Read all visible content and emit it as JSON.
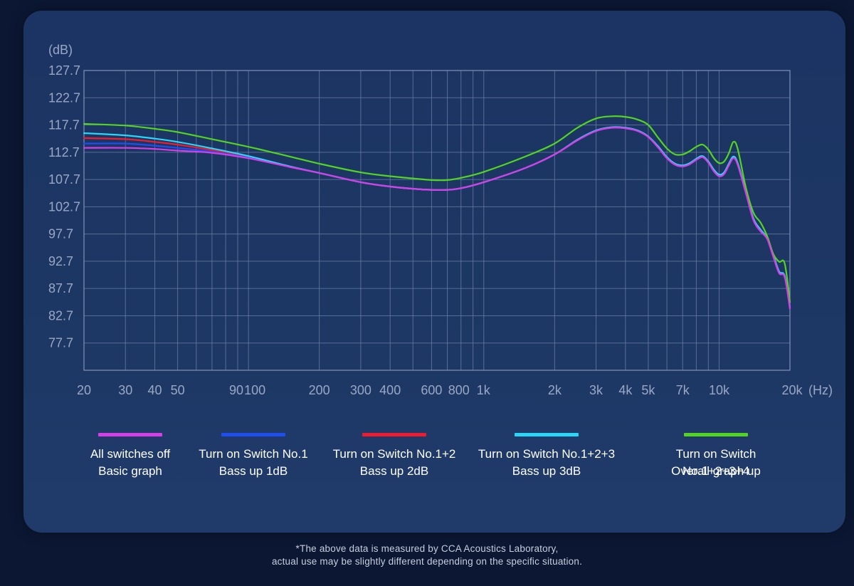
{
  "chart_data": {
    "type": "line",
    "ylabel": "(dB)",
    "xlabel": "(Hz)",
    "x_scale": "log",
    "xlim": [
      20,
      20000
    ],
    "ylim": [
      72.7,
      127.7
    ],
    "grid": true,
    "y_ticks": [
      127.7,
      122.7,
      117.7,
      112.7,
      107.7,
      102.7,
      97.7,
      92.7,
      87.7,
      82.7,
      77.7
    ],
    "x_ticks": [
      {
        "value": 20,
        "label": "20"
      },
      {
        "value": 30,
        "label": "30"
      },
      {
        "value": 40,
        "label": "40"
      },
      {
        "value": 50,
        "label": "50"
      },
      {
        "value": 90,
        "label": "90"
      },
      {
        "value": 100,
        "label": "100"
      },
      {
        "value": 200,
        "label": "200"
      },
      {
        "value": 300,
        "label": "300"
      },
      {
        "value": 400,
        "label": "400"
      },
      {
        "value": 600,
        "label": "600"
      },
      {
        "value": 800,
        "label": "800"
      },
      {
        "value": 1000,
        "label": "1k"
      },
      {
        "value": 2000,
        "label": "2k"
      },
      {
        "value": 3000,
        "label": "3k"
      },
      {
        "value": 4000,
        "label": "4k"
      },
      {
        "value": 5000,
        "label": "5k"
      },
      {
        "value": 7000,
        "label": "7k"
      },
      {
        "value": 10000,
        "label": "10k"
      },
      {
        "value": 20000,
        "label": "20k"
      }
    ],
    "legend_placement": "bottom",
    "series": [
      {
        "name": "All switches off",
        "desc": "Basic graph",
        "color": "#d63ee8",
        "points": [
          [
            20,
            113.5
          ],
          [
            30,
            113.5
          ],
          [
            40,
            113.3
          ],
          [
            50,
            113.0
          ],
          [
            70,
            112.6
          ],
          [
            100,
            111.6
          ],
          [
            150,
            110.0
          ],
          [
            200,
            108.9
          ],
          [
            300,
            107.2
          ],
          [
            400,
            106.4
          ],
          [
            500,
            106.0
          ],
          [
            600,
            105.8
          ],
          [
            700,
            105.8
          ],
          [
            800,
            106.1
          ],
          [
            1000,
            107.2
          ],
          [
            1500,
            109.8
          ],
          [
            2000,
            112.3
          ],
          [
            2500,
            114.9
          ],
          [
            3000,
            116.6
          ],
          [
            3500,
            117.2
          ],
          [
            4000,
            117.1
          ],
          [
            4500,
            116.6
          ],
          [
            5000,
            115.5
          ],
          [
            5500,
            113.6
          ],
          [
            6000,
            111.6
          ],
          [
            6500,
            110.4
          ],
          [
            7000,
            110.1
          ],
          [
            7500,
            110.5
          ],
          [
            8000,
            111.3
          ],
          [
            8500,
            111.8
          ],
          [
            9000,
            110.8
          ],
          [
            9500,
            109.2
          ],
          [
            10000,
            108.3
          ],
          [
            10500,
            108.7
          ],
          [
            11000,
            110.3
          ],
          [
            11500,
            111.6
          ],
          [
            12000,
            110.4
          ],
          [
            13000,
            105.2
          ],
          [
            14000,
            100.2
          ],
          [
            15000,
            98.2
          ],
          [
            16000,
            96.8
          ],
          [
            17000,
            93.5
          ],
          [
            18000,
            90.5
          ],
          [
            19000,
            89.8
          ],
          [
            20000,
            84.0
          ]
        ]
      },
      {
        "name": "Turn on Switch No.1",
        "desc": "Bass up 1dB",
        "color": "#1f4ef0",
        "points": [
          [
            20,
            114.3
          ],
          [
            30,
            114.3
          ],
          [
            40,
            113.9
          ],
          [
            50,
            113.5
          ],
          [
            70,
            112.8
          ],
          [
            100,
            111.7
          ],
          [
            150,
            110.0
          ],
          [
            200,
            108.9
          ],
          [
            300,
            107.2
          ],
          [
            400,
            106.4
          ],
          [
            500,
            106.0
          ],
          [
            600,
            105.8
          ],
          [
            700,
            105.8
          ],
          [
            800,
            106.1
          ],
          [
            1000,
            107.2
          ],
          [
            1500,
            109.8
          ],
          [
            2000,
            112.3
          ],
          [
            2500,
            114.9
          ],
          [
            3000,
            116.6
          ],
          [
            3500,
            117.2
          ],
          [
            4000,
            117.1
          ],
          [
            4500,
            116.6
          ],
          [
            5000,
            115.5
          ],
          [
            5500,
            113.6
          ],
          [
            6000,
            111.6
          ],
          [
            6500,
            110.4
          ],
          [
            7000,
            110.1
          ],
          [
            7500,
            110.5
          ],
          [
            8000,
            111.3
          ],
          [
            8500,
            111.8
          ],
          [
            9000,
            110.8
          ],
          [
            9500,
            109.2
          ],
          [
            10000,
            108.3
          ],
          [
            10500,
            108.7
          ],
          [
            11000,
            110.3
          ],
          [
            11500,
            111.6
          ],
          [
            12000,
            110.4
          ],
          [
            13000,
            105.2
          ],
          [
            14000,
            100.2
          ],
          [
            15000,
            98.2
          ],
          [
            16000,
            96.8
          ],
          [
            17000,
            93.5
          ],
          [
            18000,
            90.5
          ],
          [
            19000,
            89.8
          ],
          [
            20000,
            84.0
          ]
        ]
      },
      {
        "name": "Turn on Switch No.1+2",
        "desc": "Bass up 2dB",
        "color": "#ee1c2e",
        "points": [
          [
            20,
            115.3
          ],
          [
            30,
            115.1
          ],
          [
            40,
            114.6
          ],
          [
            50,
            114.1
          ],
          [
            70,
            113.1
          ],
          [
            100,
            111.8
          ],
          [
            150,
            110.0
          ],
          [
            200,
            108.9
          ],
          [
            300,
            107.2
          ],
          [
            400,
            106.4
          ],
          [
            500,
            106.0
          ],
          [
            600,
            105.8
          ],
          [
            700,
            105.8
          ],
          [
            800,
            106.1
          ],
          [
            1000,
            107.2
          ],
          [
            1500,
            109.8
          ],
          [
            2000,
            112.3
          ],
          [
            2500,
            114.9
          ],
          [
            3000,
            116.6
          ],
          [
            3500,
            117.2
          ],
          [
            4000,
            117.1
          ],
          [
            4500,
            116.6
          ],
          [
            5000,
            115.5
          ],
          [
            5500,
            113.6
          ],
          [
            6000,
            111.6
          ],
          [
            6500,
            110.4
          ],
          [
            7000,
            110.1
          ],
          [
            7500,
            110.5
          ],
          [
            8000,
            111.3
          ],
          [
            8500,
            111.8
          ],
          [
            9000,
            110.8
          ],
          [
            9500,
            109.2
          ],
          [
            10000,
            108.3
          ],
          [
            10500,
            108.7
          ],
          [
            11000,
            110.3
          ],
          [
            11500,
            111.6
          ],
          [
            12000,
            110.4
          ],
          [
            13000,
            105.2
          ],
          [
            14000,
            100.2
          ],
          [
            15000,
            98.2
          ],
          [
            16000,
            96.8
          ],
          [
            17000,
            93.5
          ],
          [
            18000,
            90.5
          ],
          [
            19000,
            89.8
          ],
          [
            20000,
            84.0
          ]
        ]
      },
      {
        "name": "Turn on Switch No.1+2+3",
        "desc": "Bass up 3dB",
        "color": "#2ad6f5",
        "points": [
          [
            20,
            116.2
          ],
          [
            30,
            115.8
          ],
          [
            40,
            115.2
          ],
          [
            50,
            114.6
          ],
          [
            70,
            113.4
          ],
          [
            100,
            112.0
          ],
          [
            150,
            110.1
          ],
          [
            200,
            108.9
          ],
          [
            300,
            107.2
          ],
          [
            400,
            106.4
          ],
          [
            500,
            106.0
          ],
          [
            600,
            105.8
          ],
          [
            700,
            105.8
          ],
          [
            800,
            106.1
          ],
          [
            1000,
            107.2
          ],
          [
            1500,
            109.8
          ],
          [
            2000,
            112.3
          ],
          [
            2500,
            115.0
          ],
          [
            3000,
            116.7
          ],
          [
            3500,
            117.3
          ],
          [
            4000,
            117.2
          ],
          [
            4500,
            116.7
          ],
          [
            5000,
            115.6
          ],
          [
            5500,
            113.8
          ],
          [
            6000,
            111.8
          ],
          [
            6500,
            110.6
          ],
          [
            7000,
            110.3
          ],
          [
            7500,
            110.7
          ],
          [
            8000,
            111.5
          ],
          [
            8500,
            112.0
          ],
          [
            9000,
            111.0
          ],
          [
            9500,
            109.5
          ],
          [
            10000,
            108.6
          ],
          [
            10500,
            109.0
          ],
          [
            11000,
            110.6
          ],
          [
            11500,
            111.9
          ],
          [
            12000,
            110.7
          ],
          [
            13000,
            105.5
          ],
          [
            14000,
            100.5
          ],
          [
            15000,
            98.5
          ],
          [
            16000,
            97.0
          ],
          [
            17000,
            93.8
          ],
          [
            18000,
            90.8
          ],
          [
            19000,
            90.0
          ],
          [
            20000,
            84.3
          ]
        ]
      },
      {
        "name": "Turn on Switch No.1+2+3+4",
        "desc": "Overall graph up",
        "color": "#52d421",
        "points": [
          [
            20,
            117.9
          ],
          [
            30,
            117.6
          ],
          [
            40,
            117.0
          ],
          [
            50,
            116.4
          ],
          [
            70,
            115.1
          ],
          [
            100,
            113.7
          ],
          [
            150,
            111.9
          ],
          [
            200,
            110.6
          ],
          [
            300,
            109.0
          ],
          [
            400,
            108.3
          ],
          [
            500,
            107.9
          ],
          [
            600,
            107.6
          ],
          [
            700,
            107.6
          ],
          [
            800,
            108.0
          ],
          [
            1000,
            109.1
          ],
          [
            1500,
            111.9
          ],
          [
            2000,
            114.3
          ],
          [
            2500,
            117.2
          ],
          [
            3000,
            118.9
          ],
          [
            3500,
            119.3
          ],
          [
            4000,
            119.2
          ],
          [
            4500,
            118.7
          ],
          [
            5000,
            117.7
          ],
          [
            5500,
            115.4
          ],
          [
            6000,
            113.4
          ],
          [
            6500,
            112.3
          ],
          [
            7000,
            112.3
          ],
          [
            7500,
            112.9
          ],
          [
            8000,
            113.7
          ],
          [
            8500,
            114.1
          ],
          [
            9000,
            113.2
          ],
          [
            9500,
            111.6
          ],
          [
            10000,
            110.7
          ],
          [
            10500,
            111.0
          ],
          [
            11000,
            112.5
          ],
          [
            11500,
            114.6
          ],
          [
            12000,
            113.3
          ],
          [
            13000,
            106.2
          ],
          [
            14000,
            101.6
          ],
          [
            15000,
            99.8
          ],
          [
            16000,
            97.3
          ],
          [
            17000,
            94.0
          ],
          [
            18000,
            92.6
          ],
          [
            19000,
            92.3
          ],
          [
            20000,
            85.2
          ]
        ]
      }
    ]
  },
  "footnote": {
    "line1": "*The above data is measured by CCA Acoustics Laboratory,",
    "line2": "actual use may be slightly different depending on the specific situation."
  }
}
